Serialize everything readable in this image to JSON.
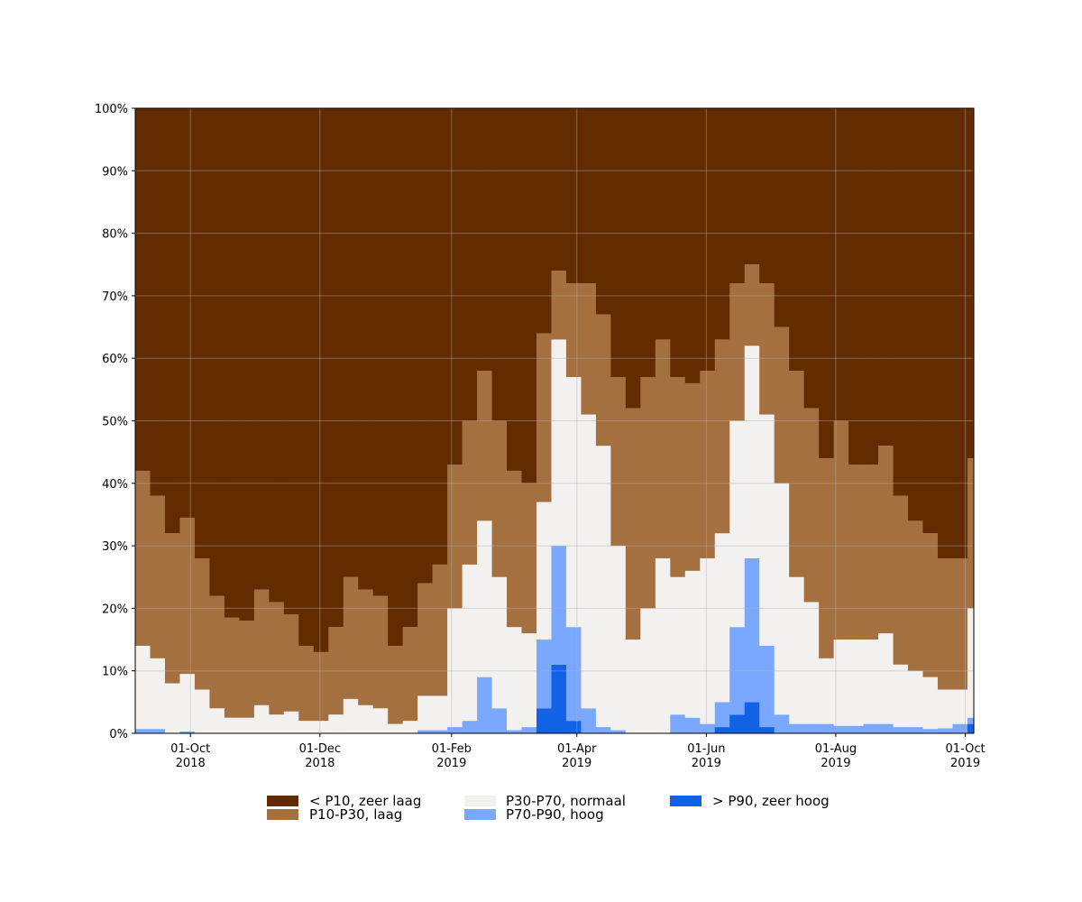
{
  "chart_data": {
    "type": "stacked_area_step",
    "x": [
      "2018-09-05",
      "2018-09-12",
      "2018-09-19",
      "2018-09-26",
      "2018-10-03",
      "2018-10-10",
      "2018-10-17",
      "2018-10-24",
      "2018-10-31",
      "2018-11-07",
      "2018-11-14",
      "2018-11-21",
      "2018-11-28",
      "2018-12-05",
      "2018-12-12",
      "2018-12-19",
      "2018-12-26",
      "2019-01-02",
      "2019-01-09",
      "2019-01-16",
      "2019-01-23",
      "2019-01-30",
      "2019-02-06",
      "2019-02-13",
      "2019-02-20",
      "2019-02-27",
      "2019-03-06",
      "2019-03-13",
      "2019-03-20",
      "2019-03-27",
      "2019-04-03",
      "2019-04-10",
      "2019-04-17",
      "2019-04-24",
      "2019-05-01",
      "2019-05-08",
      "2019-05-15",
      "2019-05-22",
      "2019-05-29",
      "2019-06-05",
      "2019-06-12",
      "2019-06-19",
      "2019-06-26",
      "2019-07-03",
      "2019-07-10",
      "2019-07-17",
      "2019-07-24",
      "2019-07-31",
      "2019-08-07",
      "2019-08-14",
      "2019-08-21",
      "2019-08-28",
      "2019-09-04",
      "2019-09-11",
      "2019-09-18",
      "2019-09-25",
      "2019-10-02"
    ],
    "series": [
      {
        "name": "< P10, zeer laag",
        "color": "#632b00",
        "values": [
          58,
          62,
          68,
          65.5,
          72,
          78,
          81.5,
          82,
          77,
          79,
          81,
          86,
          87,
          83,
          75,
          77,
          78,
          86,
          83,
          76,
          73,
          57,
          50,
          42,
          50,
          58,
          60,
          36,
          26,
          28,
          28,
          33,
          43,
          48,
          43,
          37,
          43,
          44,
          42,
          37,
          28,
          25,
          28,
          35,
          42,
          48,
          56,
          50,
          57,
          57,
          54,
          62,
          66,
          68,
          72,
          72,
          56
        ]
      },
      {
        "name": "P10-P30, laag",
        "color": "#a57040",
        "values": [
          28,
          26,
          24,
          25,
          21,
          18,
          16,
          15.5,
          18.5,
          18,
          15.5,
          12,
          11,
          14,
          19.5,
          18.5,
          18,
          12.5,
          15,
          18,
          21,
          23,
          23,
          24,
          25,
          25,
          24,
          27,
          11,
          15,
          21,
          21,
          27,
          37,
          37,
          35,
          32,
          30,
          30,
          31,
          22,
          13,
          21,
          25,
          33,
          31,
          32,
          35,
          28,
          28,
          30,
          27,
          24,
          23,
          21,
          21,
          24
        ]
      },
      {
        "name": "P30-P70, normaal",
        "color": "#f2f1f0",
        "values": [
          13.3,
          11.3,
          8,
          9.2,
          7,
          4,
          2.5,
          2.5,
          4.5,
          3,
          3.5,
          2,
          2,
          3,
          5.5,
          4.5,
          4,
          1.5,
          2,
          5.5,
          5.5,
          19,
          25,
          25,
          21,
          16.5,
          15,
          22,
          33,
          40,
          47,
          45,
          29.5,
          15,
          20,
          28,
          22,
          23.5,
          26.5,
          27,
          33,
          34,
          37,
          37,
          23.5,
          19.5,
          10.5,
          13.8,
          13.8,
          13.5,
          14.5,
          10,
          9,
          8.3,
          6.2,
          5.5,
          17.5
        ]
      },
      {
        "name": "P70-P90, hoog",
        "color": "#7aa8ff",
        "values": [
          0.7,
          0.7,
          0,
          0.3,
          0,
          0,
          0,
          0,
          0,
          0,
          0,
          0,
          0,
          0,
          0,
          0,
          0,
          0,
          0,
          0.5,
          0.5,
          1,
          2,
          9,
          4,
          0.5,
          1,
          11,
          19,
          15,
          4,
          1,
          0.5,
          0,
          0,
          0,
          3,
          2.5,
          1.5,
          4,
          14,
          23,
          13,
          3,
          1.5,
          1.5,
          1.5,
          1.2,
          1.2,
          1.5,
          1.5,
          1,
          1,
          0.7,
          0.8,
          1.5,
          1
        ]
      },
      {
        "name": "> P90, zeer hoog",
        "color": "#1262e8",
        "values": [
          0,
          0,
          0,
          0,
          0,
          0,
          0,
          0,
          0,
          0,
          0,
          0,
          0,
          0,
          0,
          0,
          0,
          0,
          0,
          0,
          0,
          0,
          0,
          0,
          0,
          0,
          0,
          4,
          11,
          2,
          0,
          0,
          0,
          0,
          0,
          0,
          0,
          0,
          0,
          1,
          3,
          5,
          1,
          0,
          0,
          0,
          0,
          0,
          0,
          0,
          0,
          0,
          0,
          0,
          0,
          0,
          1.5
        ]
      }
    ],
    "xlim": [
      "2018-09-05",
      "2019-10-05"
    ],
    "xticks": [
      {
        "value": "2018-10-01",
        "label": "01-Oct\n2018"
      },
      {
        "value": "2018-12-01",
        "label": "01-Dec\n2018"
      },
      {
        "value": "2019-02-01",
        "label": "01-Feb\n2019"
      },
      {
        "value": "2019-04-01",
        "label": "01-Apr\n2019"
      },
      {
        "value": "2019-06-01",
        "label": "01-Jun\n2019"
      },
      {
        "value": "2019-08-01",
        "label": "01-Aug\n2019"
      },
      {
        "value": "2019-10-01",
        "label": "01-Oct\n2019"
      }
    ],
    "ylim": [
      0,
      100
    ],
    "yticks": [
      {
        "value": 0,
        "label": "0%"
      },
      {
        "value": 10,
        "label": "10%"
      },
      {
        "value": 20,
        "label": "20%"
      },
      {
        "value": 30,
        "label": "30%"
      },
      {
        "value": 40,
        "label": "40%"
      },
      {
        "value": 50,
        "label": "50%"
      },
      {
        "value": 60,
        "label": "60%"
      },
      {
        "value": 70,
        "label": "70%"
      },
      {
        "value": 80,
        "label": "80%"
      },
      {
        "value": 90,
        "label": "90%"
      },
      {
        "value": 100,
        "label": "100%"
      }
    ],
    "grid": true
  }
}
